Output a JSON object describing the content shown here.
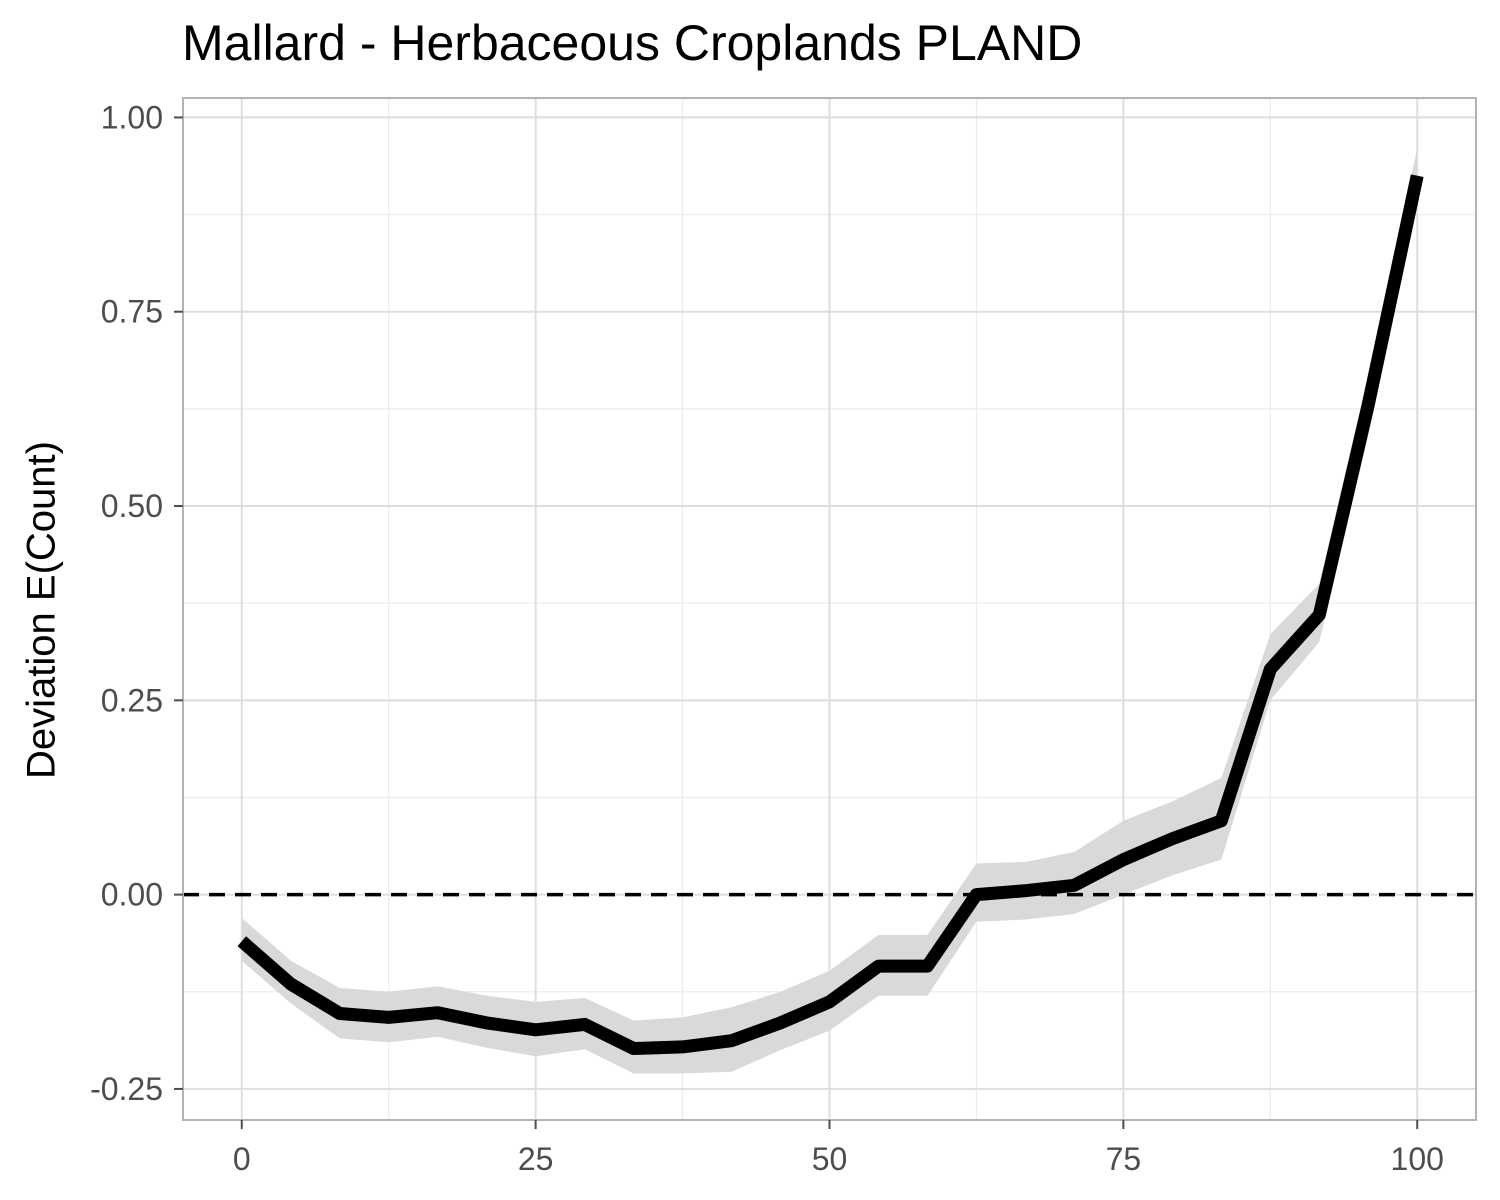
{
  "chart_data": {
    "type": "line",
    "title": "Mallard - Herbaceous Croplands PLAND",
    "xlabel": "",
    "ylabel": "Deviation E(Count)",
    "xlim": [
      -5,
      105
    ],
    "ylim": [
      -0.29,
      1.025
    ],
    "x_ticks": [
      0,
      25,
      50,
      75,
      100
    ],
    "x_tick_labels": [
      "0",
      "25",
      "50",
      "75",
      "100"
    ],
    "y_ticks": [
      -0.25,
      0,
      0.25,
      0.5,
      0.75,
      1.0
    ],
    "y_tick_labels": [
      "-0.25",
      "0.00",
      "0.25",
      "0.50",
      "0.75",
      "1.00"
    ],
    "reference_line": {
      "y": 0,
      "style": "dashed"
    },
    "grid": true,
    "series": [
      {
        "name": "Deviation E(Count)",
        "x": [
          0,
          4.17,
          8.33,
          12.5,
          16.67,
          20.83,
          25,
          29.17,
          33.33,
          37.5,
          41.67,
          45.83,
          50,
          54.17,
          58.33,
          62.5,
          66.67,
          70.83,
          75,
          79.17,
          83.33,
          87.5,
          91.67,
          95.83,
          100
        ],
        "y": [
          -0.06,
          -0.115,
          -0.153,
          -0.158,
          -0.152,
          -0.165,
          -0.174,
          -0.167,
          -0.198,
          -0.196,
          -0.188,
          -0.165,
          -0.138,
          -0.092,
          -0.092,
          0.0,
          0.005,
          0.012,
          0.045,
          0.072,
          0.095,
          0.29,
          0.36,
          0.63,
          0.925
        ],
        "lower": [
          -0.085,
          -0.14,
          -0.185,
          -0.19,
          -0.183,
          -0.197,
          -0.208,
          -0.199,
          -0.23,
          -0.23,
          -0.228,
          -0.2,
          -0.175,
          -0.13,
          -0.13,
          -0.035,
          -0.032,
          -0.025,
          0.0,
          0.025,
          0.045,
          0.25,
          0.325,
          0.59,
          0.89
        ],
        "upper": [
          -0.03,
          -0.085,
          -0.12,
          -0.125,
          -0.118,
          -0.13,
          -0.138,
          -0.133,
          -0.162,
          -0.158,
          -0.145,
          -0.125,
          -0.098,
          -0.052,
          -0.052,
          0.04,
          0.042,
          0.055,
          0.095,
          0.12,
          0.15,
          0.335,
          0.4,
          0.67,
          0.96
        ]
      }
    ]
  }
}
